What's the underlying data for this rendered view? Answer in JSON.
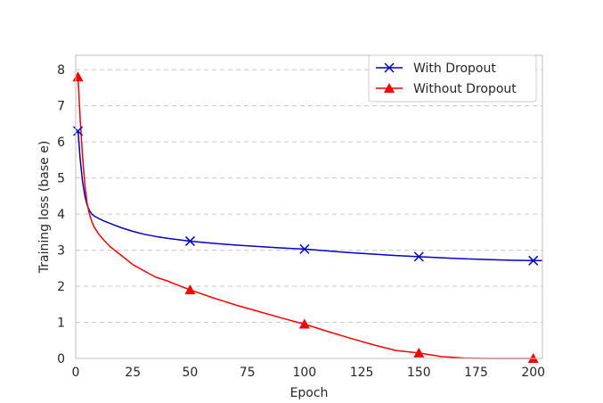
{
  "chart_data": {
    "type": "line",
    "title": "",
    "xlabel": "Epoch",
    "ylabel": "Training loss (base e)",
    "xlim": [
      0,
      204
    ],
    "ylim": [
      0,
      8.4
    ],
    "xticks": [
      0,
      25,
      50,
      75,
      100,
      125,
      150,
      175,
      200
    ],
    "yticks": [
      0,
      1,
      2,
      3,
      4,
      5,
      6,
      7,
      8
    ],
    "grid": "horizontal dashed",
    "legend_position": "top-right",
    "series": [
      {
        "name": "With Dropout",
        "color": "#0000cc",
        "marker": "x",
        "x": [
          1,
          2,
          3,
          4,
          5,
          6,
          7,
          8,
          10,
          12,
          15,
          20,
          25,
          30,
          35,
          40,
          50,
          60,
          70,
          80,
          90,
          100,
          110,
          120,
          130,
          140,
          150,
          160,
          170,
          180,
          190,
          200,
          204
        ],
        "y": [
          6.3,
          5.5,
          4.9,
          4.5,
          4.25,
          4.1,
          4.0,
          3.95,
          3.88,
          3.82,
          3.74,
          3.62,
          3.52,
          3.44,
          3.38,
          3.33,
          3.25,
          3.19,
          3.14,
          3.1,
          3.06,
          3.03,
          2.98,
          2.93,
          2.89,
          2.85,
          2.82,
          2.79,
          2.76,
          2.74,
          2.72,
          2.71,
          2.71
        ],
        "marker_x": [
          1,
          50,
          100,
          150,
          200
        ],
        "marker_y": [
          6.3,
          3.25,
          3.03,
          2.82,
          2.71
        ]
      },
      {
        "name": "Without Dropout",
        "color": "#ff0000",
        "marker": "triangle",
        "x": [
          1,
          2,
          3,
          4,
          5,
          6,
          7,
          8,
          10,
          12,
          15,
          20,
          25,
          30,
          35,
          40,
          45,
          50,
          60,
          70,
          80,
          90,
          100,
          110,
          120,
          130,
          140,
          150,
          160,
          165,
          170,
          180,
          190,
          200
        ],
        "y": [
          7.8,
          6.6,
          5.6,
          4.8,
          4.3,
          4.0,
          3.8,
          3.65,
          3.45,
          3.3,
          3.1,
          2.85,
          2.6,
          2.42,
          2.25,
          2.15,
          2.02,
          1.9,
          1.68,
          1.48,
          1.3,
          1.12,
          0.95,
          0.75,
          0.56,
          0.38,
          0.22,
          0.15,
          0.05,
          0.03,
          0.01,
          0.0,
          0.0,
          0.0
        ],
        "marker_x": [
          1,
          50,
          100,
          150,
          200
        ],
        "marker_y": [
          7.8,
          1.9,
          0.95,
          0.15,
          0.0
        ]
      }
    ]
  }
}
